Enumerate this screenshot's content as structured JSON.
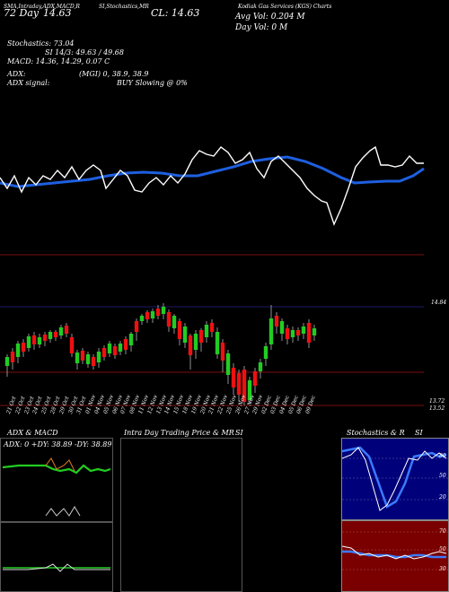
{
  "header": {
    "line1_left": "72 Day",
    "line1_price": "14.63",
    "title_studies": "SMA,Intraday,ADX,MACD,R",
    "title_indicator": "SI,Stochastics,MR",
    "cl_label": "CL: 14.63",
    "company": "Kodiak Gas Services (KGS) Charts",
    "avg_vol": "Avg Vol: 0.204  M",
    "day_vol": "Day Vol: 0   M"
  },
  "stats": {
    "stochastics": "Stochastics: 73.04",
    "si": "SI 14/3: 49.63 / 49.68",
    "macd": "MACD: 14.36,  14.29, 0.07 C",
    "adx": "ADX:",
    "adx_vals": "(MGI) 0, 38.9, 38.9",
    "adx_signal": "ADX  signal:",
    "signal": "BUY Slowing @ 0%"
  },
  "main_chart": {
    "price_tags": [
      "14.84",
      "13.72",
      "13.52"
    ],
    "dates": [
      "21 Oct",
      "22 Oct",
      "23 Oct",
      "24 Oct",
      "25 Oct",
      "28 Oct",
      "29 Oct",
      "30 Oct",
      "31 Oct",
      "01 Nov",
      "04 Nov",
      "05 Nov",
      "06 Nov",
      "07 Nov",
      "08 Nov",
      "11 Nov",
      "12 Nov",
      "13 Nov",
      "14 Nov",
      "15 Nov",
      "18 Nov",
      "19 Nov",
      "20 Nov",
      "21 Nov",
      "22 Nov",
      "25 Nov",
      "26 Nov",
      "27 Nov",
      "29 Nov",
      "02 Dec",
      "03 Dec",
      "04 Dec",
      "05 Dec",
      "06 Dec",
      "09 Dec"
    ]
  },
  "adx_panel": {
    "title": "ADX  & MACD",
    "readout": "ADX: 0    +DY: 38.89  -DY: 38.89"
  },
  "intraday_panel": {
    "title": "Intra  Day Trading Price  & MR",
    "title_right": "SI"
  },
  "stoch_panel": {
    "title": "Stochastics & R",
    "title_right": "SI",
    "axis_labels": [
      "80",
      "50",
      "20"
    ],
    "axis_labels_si": [
      "50",
      "70",
      "50",
      "30"
    ]
  },
  "colors": {
    "up": "#22cc22",
    "down": "#ee1111",
    "sma": "#1e5fe0",
    "grid_red": "#7a1010",
    "stoch_bg": "#00007a",
    "si_bg": "#7a0000"
  }
}
